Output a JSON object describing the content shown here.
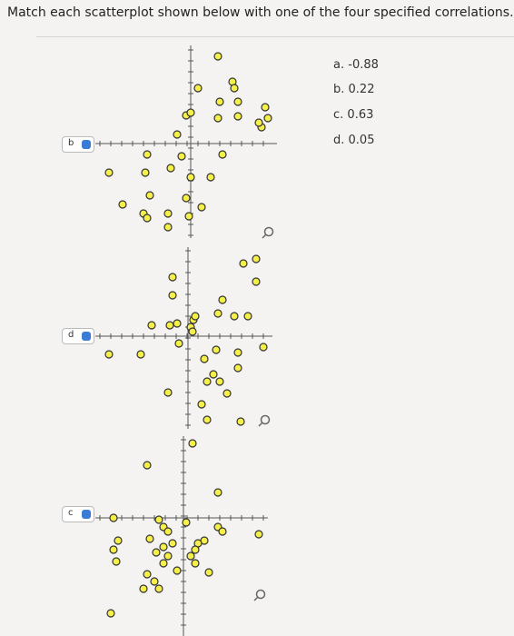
{
  "question": "Match each scatterplot shown below with one of the four specified correlations.",
  "options": [
    {
      "letter": "a.",
      "value": "-0.88"
    },
    {
      "letter": "b.",
      "value": "0.22"
    },
    {
      "letter": "c.",
      "value": "0.63"
    },
    {
      "letter": "d.",
      "value": "0.05"
    }
  ],
  "selections": [
    "b",
    "d",
    "c"
  ]
}
